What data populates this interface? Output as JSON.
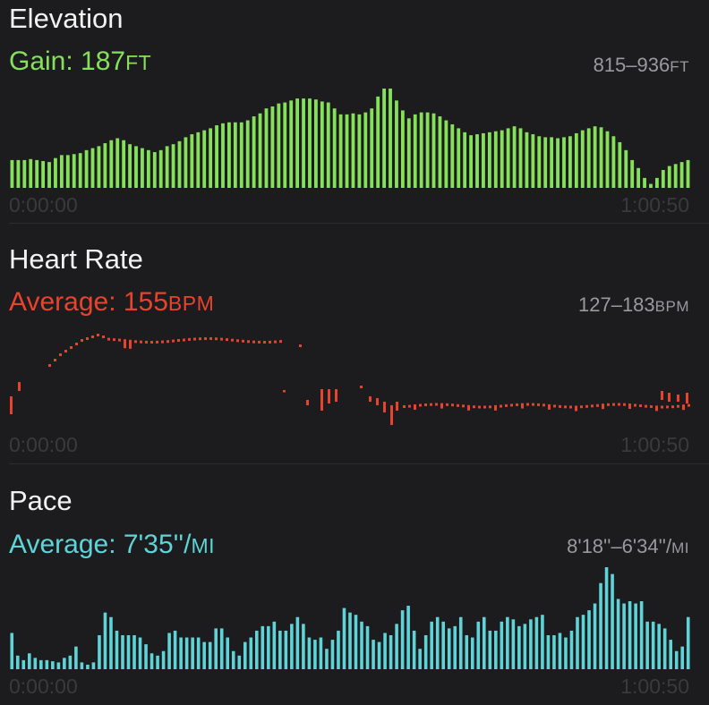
{
  "elevation": {
    "title": "Elevation",
    "summary_label": "Gain: 187",
    "summary_unit": "FT",
    "range_text": "815–936",
    "range_unit": "FT",
    "time_start": "0:00:00",
    "time_end": "1:00:50",
    "color": "#86e15a",
    "values": [
      28,
      28,
      28,
      29,
      28,
      27,
      26,
      30,
      33,
      33,
      34,
      35,
      38,
      40,
      42,
      45,
      48,
      50,
      48,
      44,
      42,
      40,
      38,
      36,
      38,
      42,
      44,
      47,
      51,
      54,
      56,
      58,
      60,
      63,
      65,
      66,
      66,
      66,
      68,
      72,
      75,
      80,
      82,
      85,
      86,
      88,
      90,
      90,
      90,
      89,
      87,
      86,
      80,
      74,
      74,
      75,
      74,
      76,
      80,
      92,
      100,
      100,
      88,
      78,
      70,
      74,
      76,
      76,
      75,
      72,
      68,
      64,
      60,
      56,
      53,
      54,
      55,
      56,
      57,
      58,
      60,
      62,
      60,
      56,
      54,
      52,
      51,
      51,
      50,
      51,
      52,
      55,
      58,
      60,
      62,
      61,
      57,
      52,
      46,
      38,
      28,
      20,
      10,
      4,
      10,
      18,
      22,
      24,
      26,
      28
    ],
    "baseline": 0,
    "vmax": 100
  },
  "heart_rate": {
    "title": "Heart Rate",
    "summary_label": "Average: 155",
    "summary_unit": "BPM",
    "range_text": "127–183",
    "range_unit": "BPM",
    "time_start": "0:00:00",
    "time_end": "1:00:50",
    "color": "#e8432c"
  },
  "pace": {
    "title": "Pace",
    "summary_label": "Average: 7'35''/",
    "summary_unit": "MI",
    "range_text": "8'18''–6'34''/",
    "range_unit": "MI",
    "time_start": "0:00:00",
    "time_end": "1:00:50",
    "color": "#5fd4d8",
    "values": [
      32,
      12,
      8,
      14,
      10,
      8,
      8,
      7,
      6,
      10,
      12,
      20,
      6,
      4,
      6,
      30,
      50,
      46,
      34,
      30,
      30,
      30,
      28,
      22,
      14,
      12,
      16,
      32,
      34,
      28,
      28,
      28,
      28,
      24,
      24,
      36,
      36,
      28,
      16,
      12,
      24,
      28,
      34,
      38,
      38,
      42,
      34,
      34,
      40,
      46,
      40,
      28,
      26,
      28,
      18,
      26,
      34,
      54,
      50,
      48,
      42,
      38,
      26,
      24,
      32,
      30,
      40,
      52,
      56,
      34,
      18,
      30,
      42,
      46,
      42,
      36,
      38,
      46,
      30,
      28,
      42,
      46,
      34,
      34,
      42,
      46,
      44,
      38,
      40,
      44,
      46,
      48,
      30,
      30,
      32,
      28,
      34,
      46,
      48,
      52,
      58,
      76,
      90,
      84,
      62,
      58,
      60,
      58,
      60,
      42,
      42,
      40,
      36,
      26,
      16,
      20,
      46
    ],
    "baseline": 0,
    "vmax": 90
  }
}
